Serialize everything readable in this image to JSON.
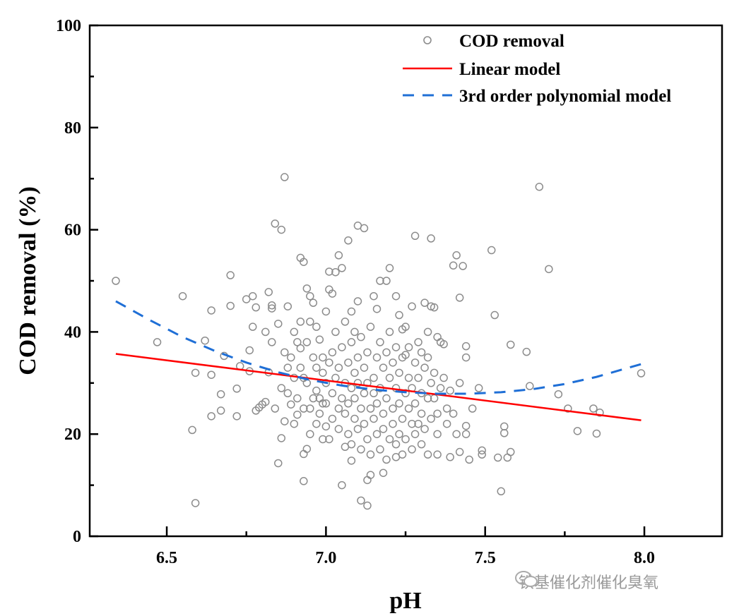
{
  "chart_data": {
    "type": "scatter",
    "xlabel": "pH",
    "ylabel": "COD removal (%)",
    "xlim": [
      6.258,
      8.244
    ],
    "ylim": [
      0,
      100
    ],
    "xticks": [
      6.5,
      7.0,
      7.5,
      8.0
    ],
    "xtick_labels": [
      "6.5",
      "7.0",
      "7.5",
      "8.0"
    ],
    "yticks": [
      0,
      20,
      40,
      60,
      80,
      100
    ],
    "ytick_labels": [
      "0",
      "20",
      "40",
      "60",
      "80",
      "100"
    ],
    "grid": false,
    "legend_position": "top-right",
    "colors": {
      "points": "#8c8c8c",
      "linear": "#ff0000",
      "poly": "#1f6fd6"
    },
    "legend": [
      "COD removal",
      "Linear model",
      "3rd order polynomial model"
    ],
    "series": [
      {
        "name": "COD removal",
        "kind": "scatter",
        "points": [
          [
            6.34,
            50
          ],
          [
            6.47,
            38
          ],
          [
            6.55,
            47
          ],
          [
            6.58,
            20.8
          ],
          [
            6.59,
            6.5
          ],
          [
            6.59,
            32
          ],
          [
            6.62,
            38.3
          ],
          [
            6.64,
            44.2
          ],
          [
            6.64,
            31.6
          ],
          [
            6.64,
            23.5
          ],
          [
            6.67,
            24.6
          ],
          [
            6.67,
            27.8
          ],
          [
            6.68,
            35.3
          ],
          [
            6.7,
            51.1
          ],
          [
            6.7,
            45.1
          ],
          [
            6.72,
            28.9
          ],
          [
            6.72,
            23.5
          ],
          [
            6.73,
            33.3
          ],
          [
            6.75,
            46.4
          ],
          [
            6.76,
            36.4
          ],
          [
            6.76,
            32.3
          ],
          [
            6.77,
            47
          ],
          [
            6.77,
            41
          ],
          [
            6.78,
            44.8
          ],
          [
            6.78,
            24.6
          ],
          [
            6.79,
            25.2
          ],
          [
            6.8,
            25.8
          ],
          [
            6.81,
            26.3
          ],
          [
            6.81,
            40
          ],
          [
            6.82,
            47.8
          ],
          [
            6.82,
            32.1
          ],
          [
            6.83,
            45.2
          ],
          [
            6.83,
            44.6
          ],
          [
            6.83,
            38
          ],
          [
            6.84,
            61.2
          ],
          [
            6.84,
            25
          ],
          [
            6.85,
            41.6
          ],
          [
            6.85,
            14.3
          ],
          [
            6.86,
            60
          ],
          [
            6.86,
            29
          ],
          [
            6.86,
            19.2
          ],
          [
            6.87,
            70.3
          ],
          [
            6.87,
            36
          ],
          [
            6.87,
            22.5
          ],
          [
            6.88,
            45
          ],
          [
            6.88,
            33
          ],
          [
            6.89,
            25.8
          ],
          [
            6.9,
            40
          ],
          [
            6.9,
            31
          ],
          [
            6.91,
            23.8
          ],
          [
            6.92,
            54.5
          ],
          [
            6.92,
            36.8
          ],
          [
            6.93,
            53.7
          ],
          [
            6.93,
            10.8
          ],
          [
            6.93,
            16.1
          ],
          [
            6.94,
            17.1
          ],
          [
            6.94,
            48.5
          ],
          [
            6.95,
            47
          ],
          [
            6.95,
            42
          ],
          [
            6.96,
            45.7
          ],
          [
            6.97,
            28.5
          ],
          [
            6.98,
            38.5
          ],
          [
            6.99,
            19
          ],
          [
            7.0,
            44
          ],
          [
            7.0,
            21.5
          ],
          [
            7.01,
            51.8
          ],
          [
            7.01,
            48.3
          ],
          [
            7.02,
            47.5
          ],
          [
            7.02,
            36
          ],
          [
            7.03,
            51.7
          ],
          [
            7.04,
            25
          ],
          [
            7.04,
            55
          ],
          [
            7.05,
            52.5
          ],
          [
            7.05,
            10
          ],
          [
            7.06,
            17.5
          ],
          [
            7.07,
            57.9
          ],
          [
            7.08,
            44
          ],
          [
            7.08,
            14.8
          ],
          [
            7.09,
            40
          ],
          [
            7.1,
            60.8
          ],
          [
            7.1,
            46
          ],
          [
            7.11,
            7
          ],
          [
            7.12,
            60.3
          ],
          [
            7.13,
            11
          ],
          [
            7.13,
            6
          ],
          [
            7.14,
            12
          ],
          [
            7.15,
            47
          ],
          [
            7.16,
            44.5
          ],
          [
            7.17,
            50
          ],
          [
            7.18,
            12.4
          ],
          [
            7.19,
            50
          ],
          [
            7.2,
            52.5
          ],
          [
            7.22,
            47
          ],
          [
            7.22,
            15.5
          ],
          [
            7.23,
            43.3
          ],
          [
            7.24,
            40.5
          ],
          [
            7.25,
            35.5
          ],
          [
            7.27,
            45
          ],
          [
            7.28,
            58.8
          ],
          [
            7.29,
            22
          ],
          [
            7.3,
            36
          ],
          [
            7.31,
            45.7
          ],
          [
            7.32,
            40
          ],
          [
            7.33,
            58.3
          ],
          [
            7.33,
            45
          ],
          [
            7.34,
            44.8
          ],
          [
            7.35,
            39
          ],
          [
            7.35,
            16
          ],
          [
            7.36,
            38
          ],
          [
            7.37,
            37.6
          ],
          [
            7.38,
            25
          ],
          [
            7.39,
            15.5
          ],
          [
            7.39,
            28.5
          ],
          [
            7.4,
            53
          ],
          [
            7.41,
            55
          ],
          [
            7.42,
            46.7
          ],
          [
            7.42,
            16.5
          ],
          [
            7.43,
            52.9
          ],
          [
            7.44,
            37.2
          ],
          [
            7.44,
            35
          ],
          [
            7.44,
            21.6
          ],
          [
            7.44,
            20
          ],
          [
            7.45,
            15
          ],
          [
            7.46,
            25
          ],
          [
            7.48,
            29
          ],
          [
            7.49,
            16
          ],
          [
            7.49,
            16.8
          ],
          [
            7.52,
            56
          ],
          [
            7.53,
            43.3
          ],
          [
            7.54,
            15.4
          ],
          [
            7.55,
            8.8
          ],
          [
            7.56,
            21.5
          ],
          [
            7.56,
            20.2
          ],
          [
            7.57,
            15.4
          ],
          [
            7.58,
            16.5
          ],
          [
            7.58,
            37.5
          ],
          [
            7.63,
            36.1
          ],
          [
            7.64,
            29.4
          ],
          [
            7.67,
            68.4
          ],
          [
            7.7,
            52.3
          ],
          [
            7.73,
            27.8
          ],
          [
            7.76,
            25
          ],
          [
            7.79,
            20.6
          ],
          [
            7.84,
            25
          ],
          [
            7.85,
            20.1
          ],
          [
            7.86,
            24.2
          ],
          [
            7.99,
            31.9
          ],
          [
            6.92,
            33
          ],
          [
            6.94,
            30
          ],
          [
            6.95,
            25
          ],
          [
            6.96,
            35
          ],
          [
            6.97,
            22
          ],
          [
            6.98,
            27
          ],
          [
            6.99,
            32
          ],
          [
            7.0,
            30
          ],
          [
            7.0,
            26
          ],
          [
            7.01,
            34
          ],
          [
            7.01,
            19
          ],
          [
            7.02,
            28
          ],
          [
            7.02,
            23
          ],
          [
            7.03,
            31
          ],
          [
            7.03,
            40
          ],
          [
            7.04,
            21
          ],
          [
            7.04,
            33
          ],
          [
            7.05,
            27
          ],
          [
            7.05,
            37
          ],
          [
            7.06,
            24
          ],
          [
            7.06,
            30
          ],
          [
            7.06,
            42
          ],
          [
            7.07,
            20
          ],
          [
            7.07,
            34
          ],
          [
            7.07,
            26
          ],
          [
            7.08,
            29
          ],
          [
            7.08,
            38
          ],
          [
            7.08,
            18
          ],
          [
            7.09,
            23
          ],
          [
            7.09,
            32
          ],
          [
            7.09,
            27
          ],
          [
            7.1,
            35
          ],
          [
            7.1,
            21
          ],
          [
            7.1,
            30
          ],
          [
            7.11,
            25
          ],
          [
            7.11,
            39
          ],
          [
            7.11,
            17
          ],
          [
            7.12,
            28
          ],
          [
            7.12,
            33
          ],
          [
            7.12,
            22
          ],
          [
            7.13,
            36
          ],
          [
            7.13,
            19
          ],
          [
            7.13,
            30
          ],
          [
            7.14,
            25
          ],
          [
            7.14,
            41
          ],
          [
            7.14,
            16
          ],
          [
            7.15,
            31
          ],
          [
            7.15,
            23
          ],
          [
            7.15,
            28
          ],
          [
            7.16,
            35
          ],
          [
            7.16,
            20
          ],
          [
            7.16,
            26
          ],
          [
            7.17,
            38
          ],
          [
            7.17,
            17
          ],
          [
            7.17,
            29
          ],
          [
            7.18,
            24
          ],
          [
            7.18,
            33
          ],
          [
            7.18,
            21
          ],
          [
            7.19,
            36
          ],
          [
            7.19,
            27
          ],
          [
            7.19,
            15
          ],
          [
            7.2,
            31
          ],
          [
            7.2,
            19
          ],
          [
            7.2,
            40
          ],
          [
            7.21,
            25
          ],
          [
            7.21,
            34
          ],
          [
            7.21,
            22
          ],
          [
            7.22,
            29
          ],
          [
            7.22,
            37
          ],
          [
            7.22,
            18
          ],
          [
            7.23,
            26
          ],
          [
            7.23,
            32
          ],
          [
            7.23,
            20
          ],
          [
            7.24,
            35
          ],
          [
            7.24,
            23
          ],
          [
            7.24,
            16
          ],
          [
            7.25,
            28
          ],
          [
            7.25,
            41
          ],
          [
            7.25,
            19
          ],
          [
            7.26,
            31
          ],
          [
            7.26,
            25
          ],
          [
            7.26,
            37
          ],
          [
            7.27,
            22
          ],
          [
            7.27,
            29
          ],
          [
            7.27,
            17
          ],
          [
            7.28,
            34
          ],
          [
            7.28,
            26
          ],
          [
            7.28,
            20
          ],
          [
            7.29,
            31
          ],
          [
            7.29,
            38
          ],
          [
            7.3,
            24
          ],
          [
            7.3,
            18
          ],
          [
            7.3,
            28
          ],
          [
            7.31,
            33
          ],
          [
            7.31,
            21
          ],
          [
            7.32,
            27
          ],
          [
            7.32,
            35
          ],
          [
            7.32,
            16
          ],
          [
            7.33,
            30
          ],
          [
            7.33,
            23
          ],
          [
            7.34,
            27
          ],
          [
            7.34,
            32
          ],
          [
            7.35,
            24
          ],
          [
            7.35,
            20
          ],
          [
            7.36,
            29
          ],
          [
            7.37,
            31
          ],
          [
            7.38,
            22
          ],
          [
            7.4,
            24
          ],
          [
            7.41,
            20
          ],
          [
            7.42,
            30
          ],
          [
            6.88,
            28
          ],
          [
            6.89,
            35
          ],
          [
            6.9,
            22
          ],
          [
            6.91,
            38
          ],
          [
            6.91,
            27
          ],
          [
            6.92,
            42
          ],
          [
            6.93,
            25
          ],
          [
            6.93,
            31
          ],
          [
            6.94,
            38
          ],
          [
            6.95,
            20
          ],
          [
            6.96,
            27
          ],
          [
            6.97,
            33
          ],
          [
            6.97,
            41
          ],
          [
            6.98,
            24
          ],
          [
            6.99,
            35
          ],
          [
            6.99,
            26
          ]
        ]
      },
      {
        "name": "Linear model",
        "kind": "line",
        "points": [
          [
            6.34,
            35.7
          ],
          [
            7.99,
            22.7
          ]
        ]
      },
      {
        "name": "3rd order polynomial model",
        "kind": "dashed-line",
        "points": [
          [
            6.34,
            46
          ],
          [
            6.45,
            42.2
          ],
          [
            6.55,
            39
          ],
          [
            6.65,
            36.3
          ],
          [
            6.75,
            34
          ],
          [
            6.85,
            32.1
          ],
          [
            6.95,
            30.6
          ],
          [
            7.05,
            29.5
          ],
          [
            7.15,
            28.7
          ],
          [
            7.25,
            28.2
          ],
          [
            7.35,
            27.9
          ],
          [
            7.45,
            27.9
          ],
          [
            7.55,
            28.2
          ],
          [
            7.65,
            28.8
          ],
          [
            7.75,
            29.8
          ],
          [
            7.85,
            31.2
          ],
          [
            7.99,
            33.7
          ]
        ]
      }
    ]
  },
  "watermark": "铁基催化剂催化臭氧"
}
